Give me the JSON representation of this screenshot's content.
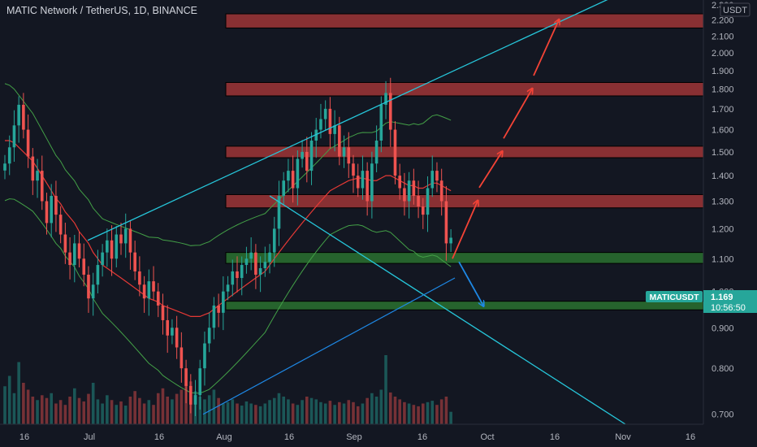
{
  "header": {
    "title": "MATIC Network / TetherUS, 1D, BINANCE"
  },
  "price_axis": {
    "currency": "USDT",
    "ticks": [
      "2.300",
      "2.200",
      "2.100",
      "2.000",
      "1.900",
      "1.800",
      "1.700",
      "1.600",
      "1.500",
      "1.400",
      "1.300",
      "1.200",
      "1.100",
      "1.000",
      "0.900",
      "0.800",
      "0.700"
    ]
  },
  "time_axis": {
    "ticks": [
      "16",
      "Jul",
      "16",
      "Aug",
      "16",
      "Sep",
      "16",
      "Oct",
      "16",
      "Nov",
      "16"
    ]
  },
  "last_price": {
    "symbol": "MATICUSDT",
    "value": "1.169",
    "countdown": "10:56:50"
  },
  "colors": {
    "up": "#26a69a",
    "down": "#ef5350",
    "resistance": "#b23a3a",
    "support": "#2e7d32",
    "trendline": "#26c6da",
    "arrow_up": "#f44336",
    "arrow_down": "#1e88e5"
  },
  "chart_data": {
    "type": "candlestick",
    "title": "MATIC Network / TetherUS, 1D, BINANCE",
    "ylim": [
      0.68,
      2.31
    ],
    "y_scale": "log",
    "grid": false,
    "resistance_zones": [
      [
        2.15,
        2.24
      ],
      [
        1.765,
        1.835
      ],
      [
        1.475,
        1.525
      ],
      [
        1.275,
        1.325
      ]
    ],
    "support_zones": [
      [
        1.085,
        1.12
      ],
      [
        0.948,
        0.972
      ]
    ],
    "trendlines": [
      {
        "from": [
          "2021-06-30",
          1.16
        ],
        "to": [
          "2021-10-20",
          2.34
        ]
      },
      {
        "from": [
          "2021-08-10",
          1.32
        ],
        "to": [
          "2021-11-01",
          0.68
        ]
      }
    ],
    "projection_up": [
      1.1,
      1.3,
      1.5,
      1.8,
      2.2
    ],
    "projection_down_target": 0.96,
    "closes": [
      1.45,
      1.52,
      1.62,
      1.72,
      1.6,
      1.48,
      1.38,
      1.42,
      1.3,
      1.22,
      1.32,
      1.25,
      1.18,
      1.12,
      1.08,
      1.15,
      1.1,
      1.05,
      0.98,
      1.02,
      1.08,
      1.12,
      1.16,
      1.1,
      1.18,
      1.15,
      1.2,
      1.12,
      1.06,
      1.02,
      0.98,
      1.03,
      1.0,
      0.96,
      0.92,
      0.88,
      0.9,
      0.85,
      0.8,
      0.76,
      0.72,
      0.74,
      0.8,
      0.86,
      0.9,
      0.96,
      0.94,
      1.0,
      1.02,
      1.06,
      1.04,
      1.08,
      1.1,
      1.12,
      1.05,
      1.07,
      1.09,
      1.12,
      1.2,
      1.32,
      1.38,
      1.42,
      1.35,
      1.47,
      1.5,
      1.42,
      1.55,
      1.6,
      1.65,
      1.7,
      1.58,
      1.62,
      1.48,
      1.52,
      1.45,
      1.4,
      1.35,
      1.42,
      1.3,
      1.45,
      1.55,
      1.72,
      1.78,
      1.6,
      1.4,
      1.35,
      1.3,
      1.38,
      1.32,
      1.28,
      1.25,
      1.35,
      1.42,
      1.38,
      1.3,
      1.15,
      1.169
    ],
    "volume": [
      55,
      70,
      45,
      90,
      60,
      50,
      40,
      35,
      42,
      38,
      45,
      30,
      35,
      28,
      40,
      52,
      38,
      33,
      44,
      60,
      36,
      30,
      42,
      35,
      28,
      33,
      27,
      40,
      48,
      38,
      30,
      35,
      28,
      45,
      52,
      40,
      36,
      44,
      50,
      58,
      62,
      48,
      40,
      36,
      42,
      50,
      38,
      30,
      32,
      36,
      30,
      27,
      33,
      30,
      28,
      26,
      30,
      35,
      38,
      45,
      40,
      36,
      30,
      28,
      35,
      40,
      38,
      36,
      32,
      30,
      34,
      28,
      32,
      30,
      35,
      32,
      26,
      30,
      38,
      45,
      40,
      50,
      100,
      46,
      40,
      36,
      32,
      30,
      28,
      26,
      30,
      32,
      34,
      28,
      36,
      40,
      18
    ],
    "ma_line": [
      1.55,
      1.55,
      1.54,
      1.52,
      1.5,
      1.48,
      1.46,
      1.43,
      1.4,
      1.37,
      1.34,
      1.31,
      1.29,
      1.26,
      1.24,
      1.22,
      1.19,
      1.17,
      1.15,
      1.12,
      1.1,
      1.08,
      1.07,
      1.06,
      1.05,
      1.04,
      1.03,
      1.02,
      1.01,
      1.0,
      0.99,
      0.98,
      0.975,
      0.97,
      0.96,
      0.955,
      0.95,
      0.945,
      0.94,
      0.935,
      0.93,
      0.93,
      0.93,
      0.935,
      0.94,
      0.95,
      0.96,
      0.97,
      0.98,
      0.99,
      1.0,
      1.01,
      1.02,
      1.03,
      1.04,
      1.05,
      1.06,
      1.08,
      1.1,
      1.12,
      1.14,
      1.16,
      1.18,
      1.2,
      1.22,
      1.24,
      1.26,
      1.28,
      1.3,
      1.32,
      1.34,
      1.35,
      1.36,
      1.37,
      1.38,
      1.385,
      1.39,
      1.39,
      1.385,
      1.38,
      1.38,
      1.39,
      1.4,
      1.4,
      1.39,
      1.38,
      1.37,
      1.36,
      1.36,
      1.35,
      1.35,
      1.36,
      1.37,
      1.37,
      1.36,
      1.35,
      1.34
    ]
  }
}
